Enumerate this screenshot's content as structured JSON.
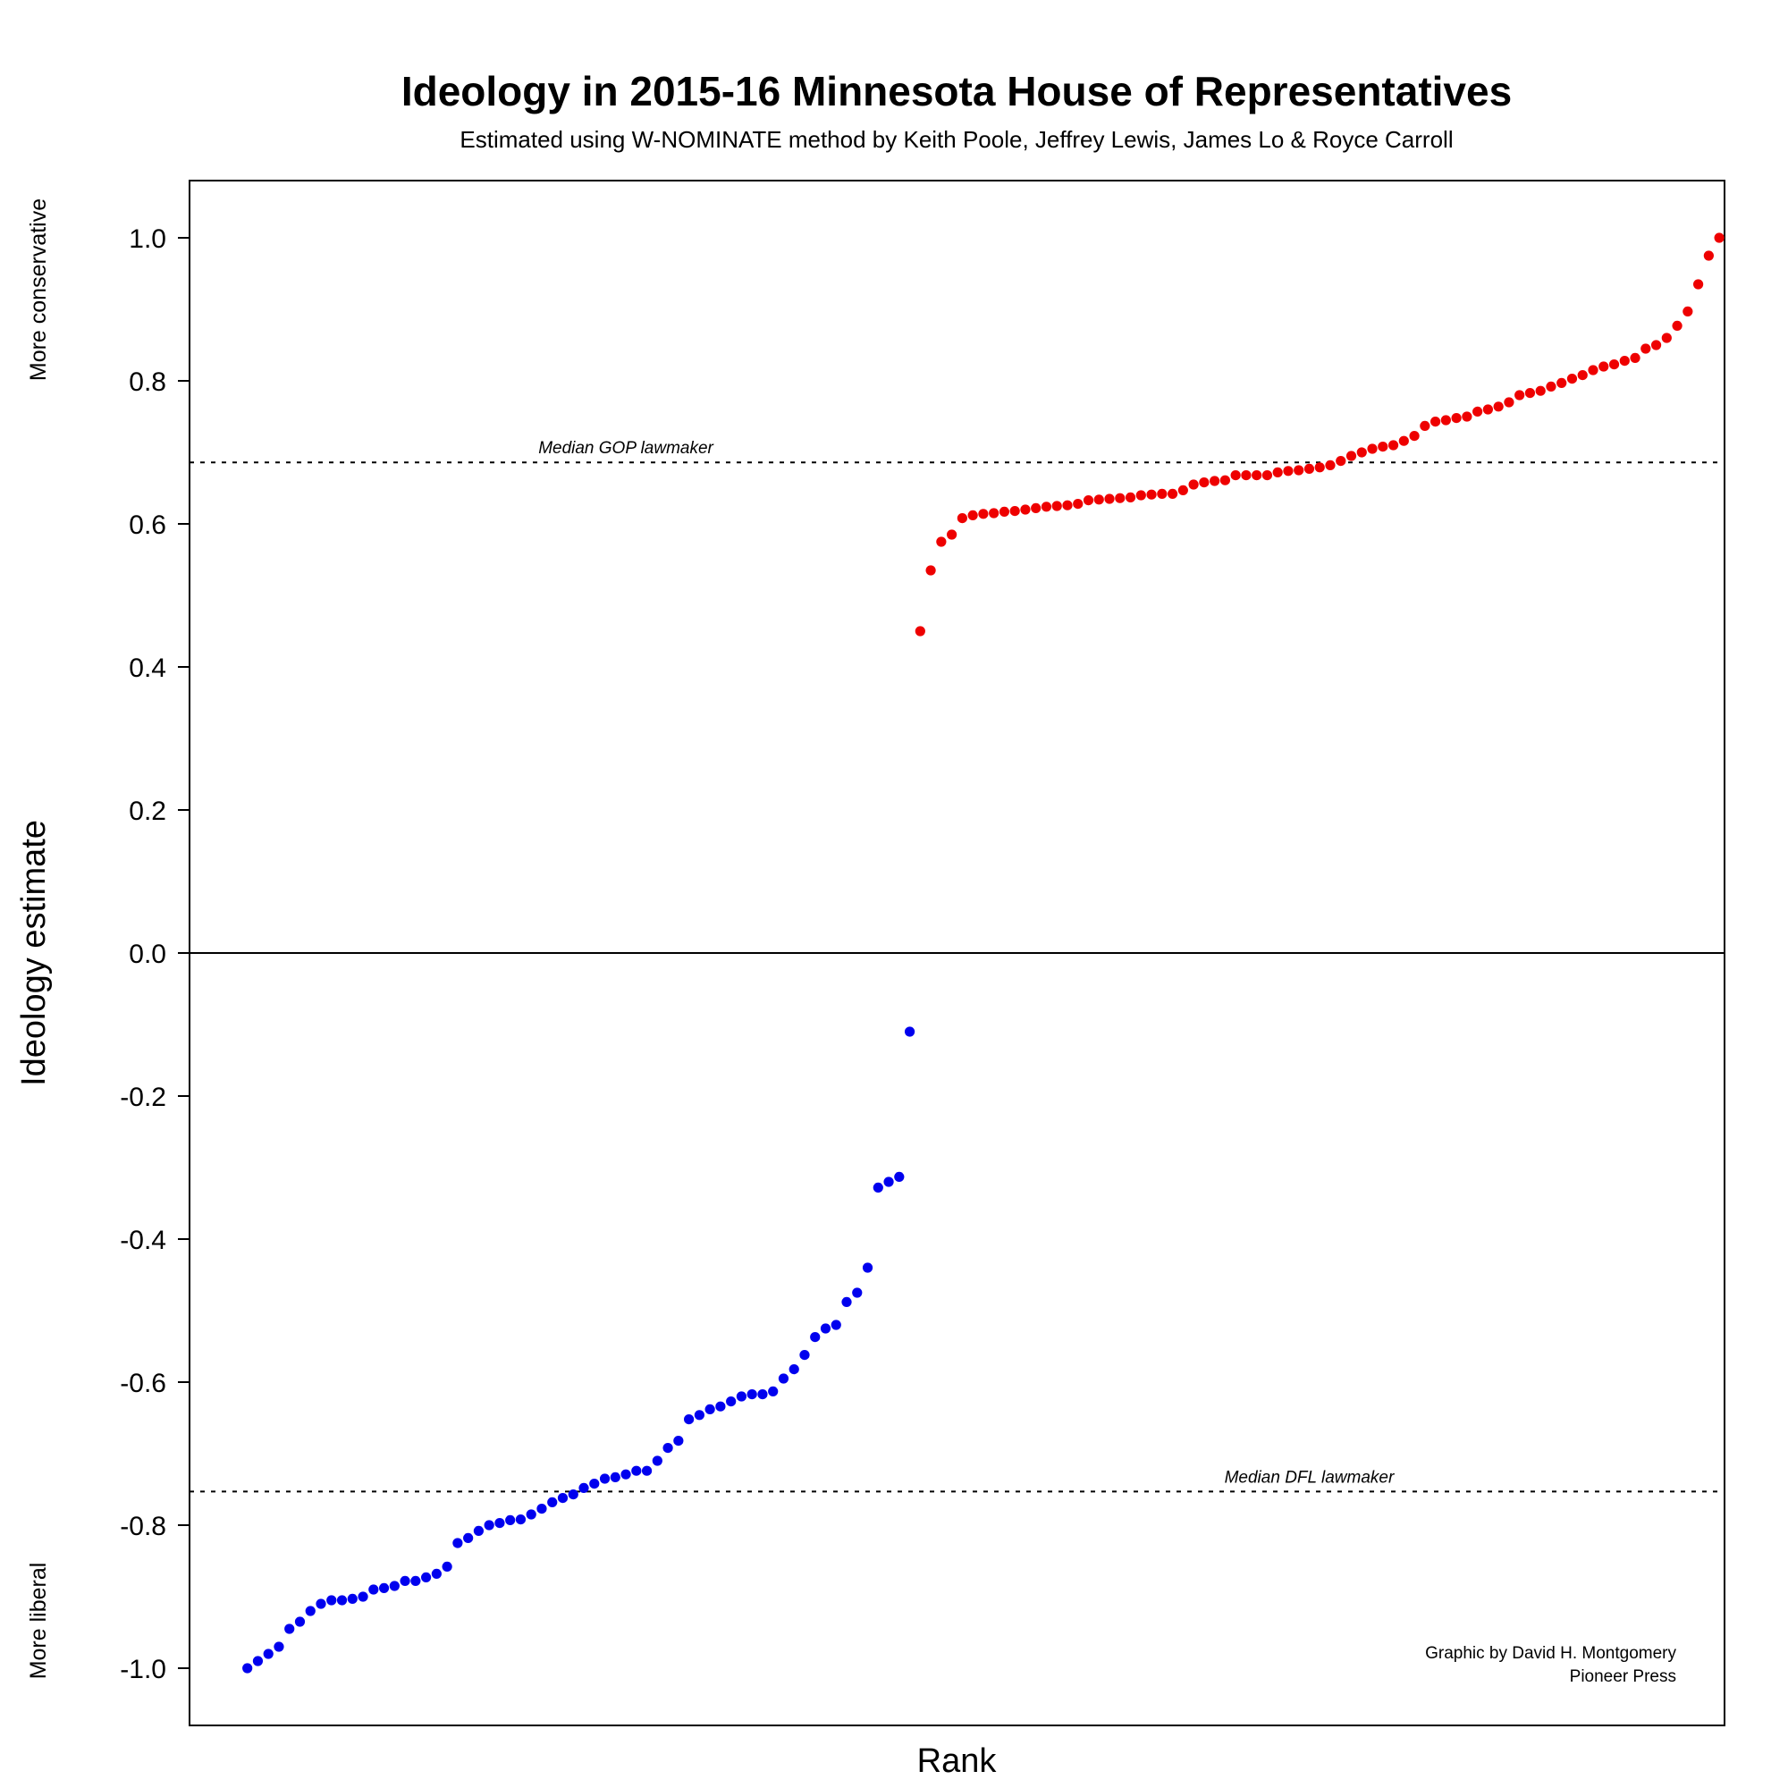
{
  "chart_data": {
    "type": "scatter",
    "title": "Ideology in 2015-16 Minnesota House of Representatives",
    "subtitle": "Estimated using W-NOMINATE method by Keith Poole, Jeffrey Lewis, James Lo & Royce Carroll",
    "xlabel": "Rank",
    "ylabel": "Ideology estimate",
    "ylabel_top": "More conservative",
    "ylabel_bottom": "More liberal",
    "ylim": [
      -1.08,
      1.08
    ],
    "xlim": [
      -4.5,
      141.5
    ],
    "yticks": [
      1.0,
      0.8,
      0.6,
      0.4,
      0.2,
      0.0,
      -0.2,
      -0.4,
      -0.6,
      -0.8,
      -1.0
    ],
    "ytick_labels": [
      "1.0",
      "0.8",
      "0.6",
      "0.4",
      "0.2",
      "0.0",
      "-0.2",
      "-0.4",
      "-0.6",
      "-0.8",
      "-1.0"
    ],
    "zero_line": 0.0,
    "reference_lines": [
      {
        "label": "Median GOP lawmaker",
        "y": 0.686,
        "label_x": 37
      },
      {
        "label": "Median DFL lawmaker",
        "y": -0.753,
        "label_x": 102
      }
    ],
    "credit": [
      "Graphic by David H. Montgomery",
      "Pioneer Press"
    ],
    "series": [
      {
        "color": "#0000ee",
        "x_start": 1,
        "values": [
          -1.0,
          -0.99,
          -0.98,
          -0.97,
          -0.945,
          -0.935,
          -0.92,
          -0.91,
          -0.905,
          -0.905,
          -0.903,
          -0.9,
          -0.89,
          -0.888,
          -0.885,
          -0.878,
          -0.878,
          -0.873,
          -0.868,
          -0.858,
          -0.825,
          -0.818,
          -0.808,
          -0.8,
          -0.797,
          -0.793,
          -0.792,
          -0.785,
          -0.777,
          -0.768,
          -0.762,
          -0.757,
          -0.748,
          -0.742,
          -0.735,
          -0.733,
          -0.729,
          -0.724,
          -0.724,
          -0.71,
          -0.692,
          -0.682,
          -0.652,
          -0.646,
          -0.638,
          -0.634,
          -0.627,
          -0.62,
          -0.617,
          -0.617,
          -0.613,
          -0.595,
          -0.582,
          -0.562,
          -0.537,
          -0.525,
          -0.52,
          -0.488,
          -0.475,
          -0.44,
          -0.328,
          -0.32,
          -0.313,
          -0.11
        ]
      },
      {
        "color": "#ee0000",
        "x_start": 65,
        "values": [
          0.45,
          0.535,
          0.575,
          0.585,
          0.608,
          0.612,
          0.614,
          0.615,
          0.617,
          0.618,
          0.62,
          0.622,
          0.624,
          0.625,
          0.626,
          0.628,
          0.633,
          0.634,
          0.635,
          0.636,
          0.637,
          0.64,
          0.641,
          0.642,
          0.642,
          0.647,
          0.655,
          0.658,
          0.66,
          0.661,
          0.668,
          0.668,
          0.668,
          0.668,
          0.672,
          0.674,
          0.675,
          0.677,
          0.679,
          0.682,
          0.688,
          0.695,
          0.7,
          0.705,
          0.708,
          0.71,
          0.716,
          0.723,
          0.737,
          0.743,
          0.745,
          0.748,
          0.75,
          0.757,
          0.76,
          0.764,
          0.77,
          0.78,
          0.783,
          0.786,
          0.792,
          0.797,
          0.803,
          0.808,
          0.815,
          0.82,
          0.823,
          0.828,
          0.832,
          0.845,
          0.85,
          0.86,
          0.877,
          0.897,
          0.935,
          0.975,
          1.0
        ]
      }
    ]
  }
}
